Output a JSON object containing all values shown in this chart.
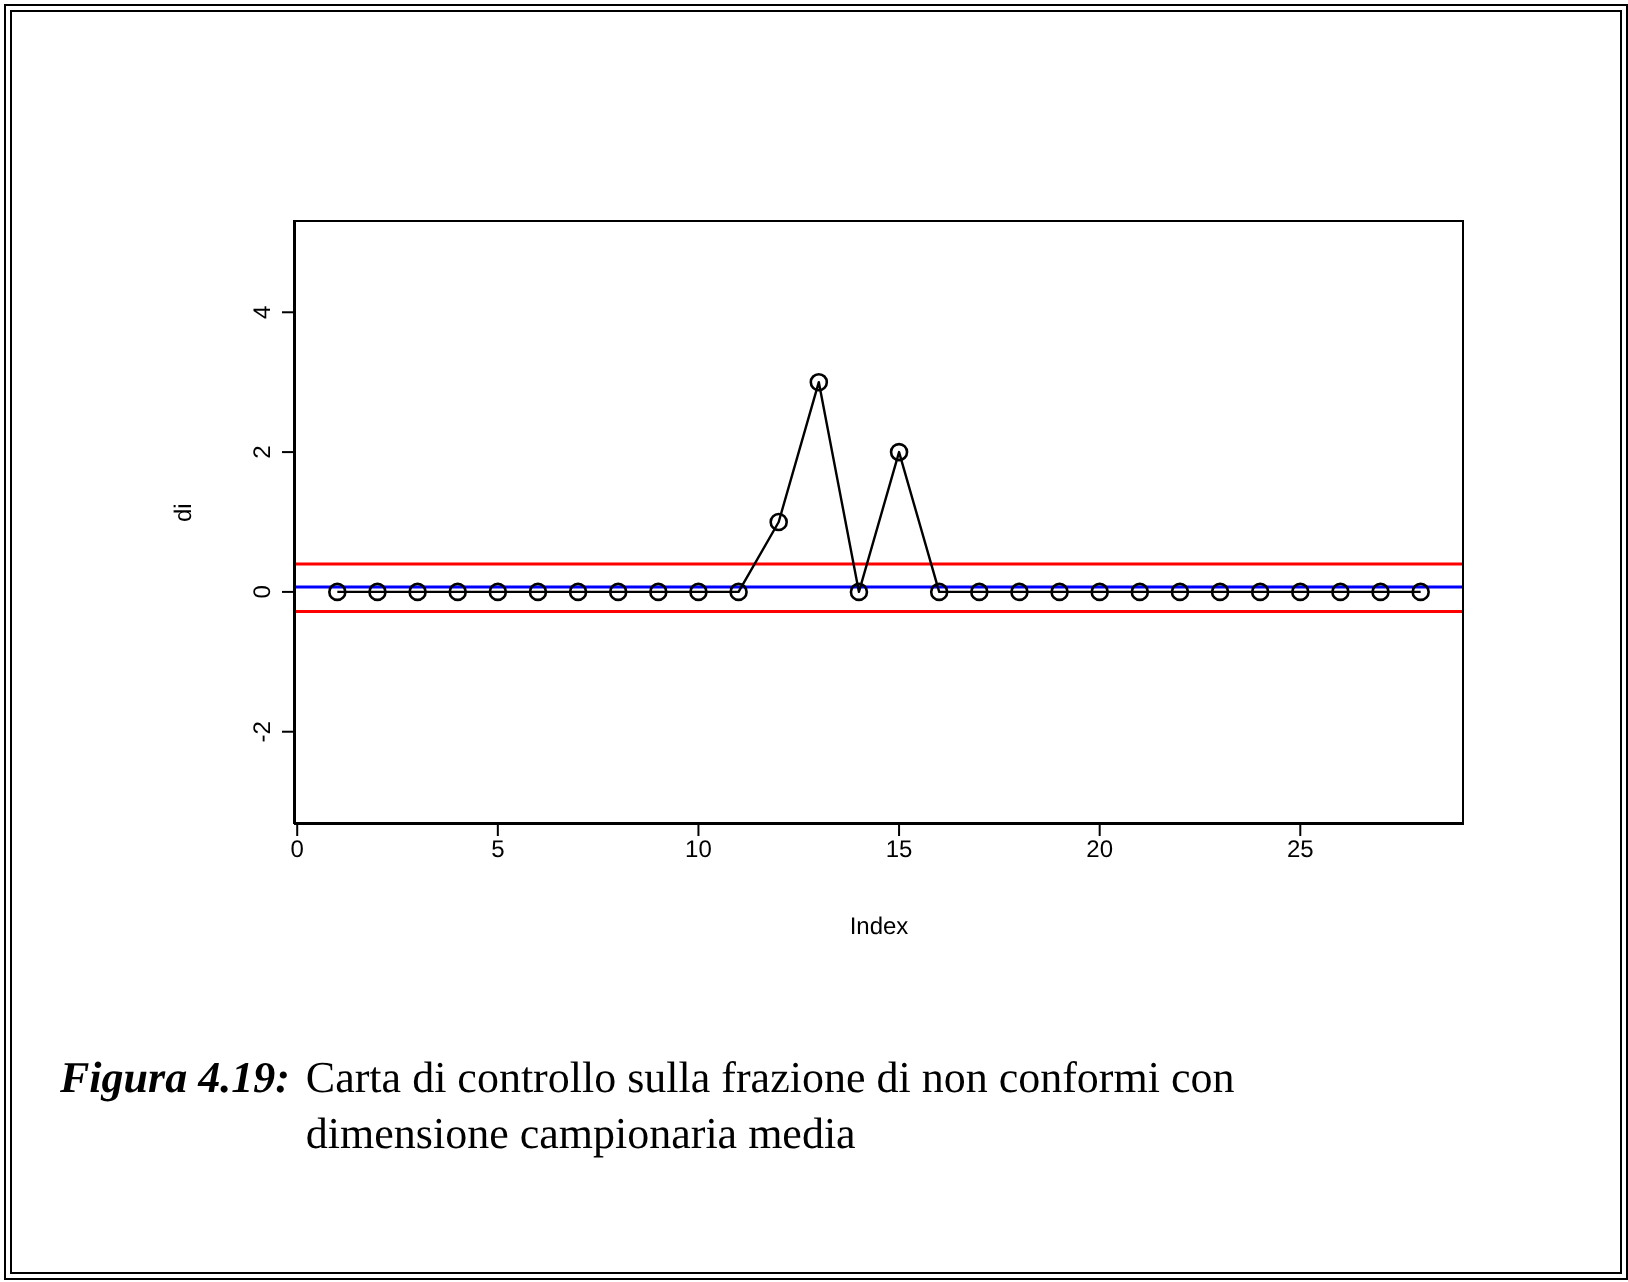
{
  "chart_data": {
    "type": "line",
    "xlabel": "Index",
    "ylabel": "di",
    "x": [
      1,
      2,
      3,
      4,
      5,
      6,
      7,
      8,
      9,
      10,
      11,
      12,
      13,
      14,
      15,
      16,
      17,
      18,
      19,
      20,
      21,
      22,
      23,
      24,
      25,
      26,
      27,
      28
    ],
    "series": [
      {
        "color": "#000000",
        "values": [
          0,
          0,
          0,
          0,
          0,
          0,
          0,
          0,
          0,
          0,
          0,
          1,
          3,
          0,
          2,
          0,
          0,
          0,
          0,
          0,
          0,
          0,
          0,
          0,
          0,
          0,
          0,
          0
        ]
      }
    ],
    "xlim": [
      -0.08,
      29.08
    ],
    "xticks": [
      0,
      5,
      10,
      15,
      20,
      25
    ],
    "ylim": [
      -3.32,
      5.32
    ],
    "yticks": [
      -2,
      0,
      2,
      4
    ],
    "ref_lines": [
      {
        "axis": "y",
        "value": 0.4,
        "color": "#ff0000"
      },
      {
        "axis": "y",
        "value": -0.28,
        "color": "#ff0000"
      },
      {
        "axis": "y",
        "value": 0.07,
        "color": "#0000ff"
      }
    ],
    "marker": "circle",
    "line_style": "solid",
    "grid": false,
    "legend": false,
    "annotations": [
      "Figura 4.19:",
      "Carta di controllo sulla frazione di non conformi con dimensione campionaria media"
    ]
  }
}
